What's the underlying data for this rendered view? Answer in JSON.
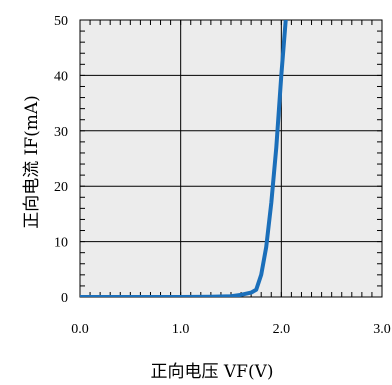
{
  "chart_data": {
    "type": "line",
    "title": "",
    "xlabel": "正向电压 VF(V)",
    "ylabel": "正向电流 IF(mA)",
    "xlim": [
      0,
      3
    ],
    "ylim": [
      0,
      50
    ],
    "x_ticks": [
      "0.0",
      "1.0",
      "2.0",
      "3.0"
    ],
    "y_ticks": [
      "0",
      "10",
      "20",
      "30",
      "40",
      "50"
    ],
    "grid": true,
    "colors": {
      "plot_bg": "#ececec",
      "grid": "#000000",
      "line": "#1b6fba"
    },
    "series": [
      {
        "x": [
          0.0,
          0.5,
          1.0,
          1.3,
          1.5,
          1.6,
          1.7,
          1.75,
          1.8,
          1.85,
          1.9,
          1.95,
          2.0,
          2.05
        ],
        "y": [
          0.0,
          0.0,
          0.0,
          0.05,
          0.15,
          0.4,
          0.8,
          1.3,
          4.0,
          9.0,
          17.0,
          27.0,
          40.0,
          51.5
        ]
      }
    ]
  }
}
